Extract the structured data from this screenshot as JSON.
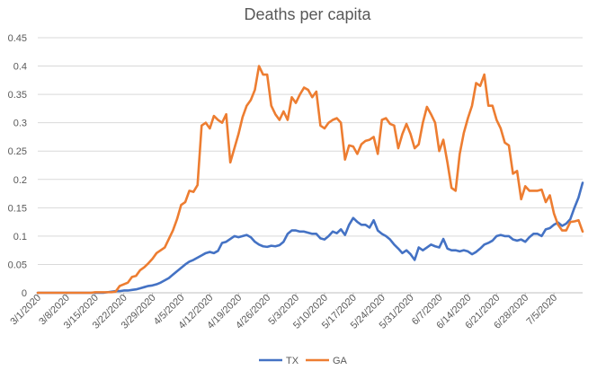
{
  "chart_data": {
    "type": "line",
    "title": "Deaths per capita",
    "xlabel": "",
    "ylabel": "",
    "ylim": [
      0,
      0.45
    ],
    "yticks": [
      "0",
      "0.05",
      "0.1",
      "0.15",
      "0.2",
      "0.25",
      "0.3",
      "0.35",
      "0.4",
      "0.45"
    ],
    "x_start": "3/1/2020",
    "x_end": "7/10/2020",
    "xtick_labels": [
      "3/1/2020",
      "3/8/2020",
      "3/15/2020",
      "3/22/2020",
      "3/29/2020",
      "4/5/2020",
      "4/12/2020",
      "4/19/2020",
      "4/26/2020",
      "5/3/2020",
      "5/10/2020",
      "5/17/2020",
      "5/24/2020",
      "5/31/2020",
      "6/7/2020",
      "6/14/2020",
      "6/21/2020",
      "6/28/2020",
      "7/5/2020"
    ],
    "legend_position": "bottom",
    "series": [
      {
        "name": "TX",
        "color": "#4472C4",
        "values": [
          0,
          0,
          0,
          0,
          0,
          0,
          0,
          0,
          0,
          0,
          0,
          0,
          0,
          0,
          0,
          0,
          0,
          0.001,
          0.002,
          0.003,
          0.003,
          0.004,
          0.004,
          0.005,
          0.006,
          0.008,
          0.01,
          0.012,
          0.013,
          0.015,
          0.018,
          0.022,
          0.026,
          0.032,
          0.038,
          0.044,
          0.05,
          0.055,
          0.058,
          0.062,
          0.066,
          0.07,
          0.072,
          0.07,
          0.074,
          0.088,
          0.09,
          0.095,
          0.1,
          0.098,
          0.1,
          0.102,
          0.098,
          0.09,
          0.085,
          0.082,
          0.081,
          0.083,
          0.082,
          0.084,
          0.09,
          0.104,
          0.11,
          0.11,
          0.108,
          0.108,
          0.106,
          0.104,
          0.104,
          0.096,
          0.094,
          0.1,
          0.108,
          0.105,
          0.112,
          0.102,
          0.12,
          0.132,
          0.125,
          0.12,
          0.12,
          0.115,
          0.128,
          0.11,
          0.104,
          0.1,
          0.094,
          0.085,
          0.078,
          0.07,
          0.075,
          0.068,
          0.058,
          0.08,
          0.075,
          0.08,
          0.085,
          0.082,
          0.08,
          0.095,
          0.078,
          0.075,
          0.075,
          0.073,
          0.075,
          0.073,
          0.068,
          0.072,
          0.078,
          0.085,
          0.088,
          0.092,
          0.1,
          0.102,
          0.1,
          0.1,
          0.094,
          0.092,
          0.094,
          0.09,
          0.098,
          0.104,
          0.104,
          0.1,
          0.112,
          0.114,
          0.12,
          0.124,
          0.118,
          0.122,
          0.13,
          0.15,
          0.168,
          0.194
        ]
      },
      {
        "name": "GA",
        "color": "#ED7D31",
        "values": [
          0,
          0,
          0,
          0,
          0,
          0,
          0,
          0,
          0,
          0,
          0,
          0,
          0,
          0,
          0.001,
          0.001,
          0.001,
          0.001,
          0.001,
          0.002,
          0.012,
          0.015,
          0.018,
          0.028,
          0.03,
          0.04,
          0.045,
          0.052,
          0.06,
          0.07,
          0.075,
          0.08,
          0.095,
          0.11,
          0.13,
          0.155,
          0.16,
          0.18,
          0.178,
          0.19,
          0.295,
          0.3,
          0.29,
          0.312,
          0.305,
          0.3,
          0.315,
          0.23,
          0.255,
          0.28,
          0.31,
          0.33,
          0.34,
          0.358,
          0.4,
          0.385,
          0.385,
          0.33,
          0.315,
          0.305,
          0.32,
          0.305,
          0.345,
          0.335,
          0.35,
          0.362,
          0.358,
          0.345,
          0.355,
          0.295,
          0.29,
          0.3,
          0.305,
          0.308,
          0.3,
          0.235,
          0.26,
          0.258,
          0.245,
          0.262,
          0.268,
          0.27,
          0.275,
          0.245,
          0.305,
          0.308,
          0.298,
          0.295,
          0.255,
          0.28,
          0.298,
          0.28,
          0.255,
          0.262,
          0.3,
          0.328,
          0.315,
          0.3,
          0.25,
          0.27,
          0.23,
          0.185,
          0.18,
          0.245,
          0.282,
          0.308,
          0.33,
          0.37,
          0.365,
          0.385,
          0.33,
          0.33,
          0.305,
          0.29,
          0.265,
          0.26,
          0.21,
          0.215,
          0.165,
          0.188,
          0.18,
          0.18,
          0.18,
          0.182,
          0.16,
          0.172,
          0.14,
          0.12,
          0.11,
          0.11,
          0.125,
          0.126,
          0.128,
          0.108
        ]
      }
    ]
  }
}
